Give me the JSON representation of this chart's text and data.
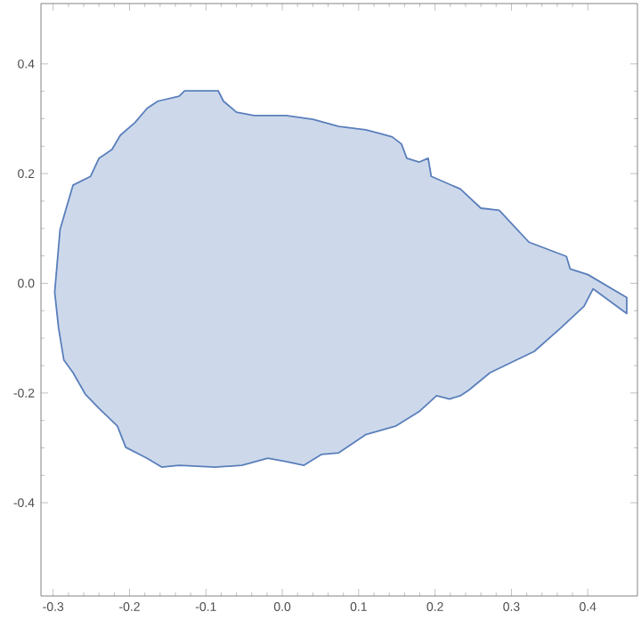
{
  "chart_data": {
    "type": "area",
    "xlim": [
      -0.316,
      0.465
    ],
    "ylim": [
      -0.57,
      0.51
    ],
    "xticks": [
      {
        "value": -0.3,
        "label": "-0.3"
      },
      {
        "value": -0.2,
        "label": "-0.2"
      },
      {
        "value": -0.1,
        "label": "-0.1"
      },
      {
        "value": 0,
        "label": "0.0"
      },
      {
        "value": 0.1,
        "label": "0.1"
      },
      {
        "value": 0.2,
        "label": "0.2"
      },
      {
        "value": 0.3,
        "label": "0.3"
      },
      {
        "value": 0.4,
        "label": "0.4"
      }
    ],
    "yticks": [
      {
        "value": -0.4,
        "label": "-0.4"
      },
      {
        "value": -0.2,
        "label": "-0.2"
      },
      {
        "value": 0,
        "label": "0.0"
      },
      {
        "value": 0.2,
        "label": "0.2"
      },
      {
        "value": 0.4,
        "label": "0.4"
      }
    ],
    "series": [
      {
        "color": "#5a7fbb",
        "x": [
          -0.298,
          -0.291,
          -0.274,
          -0.251,
          -0.24,
          -0.223,
          -0.212,
          -0.193,
          -0.177,
          -0.163,
          -0.135,
          -0.128,
          -0.1,
          -0.084,
          -0.077,
          -0.06,
          -0.037,
          0.005,
          0.04,
          0.074,
          0.109,
          0.128,
          0.144,
          0.156,
          0.163,
          0.179,
          0.191,
          0.195,
          0.233,
          0.26,
          0.284,
          0.323,
          0.372,
          0.377,
          0.4,
          0.451,
          0.451,
          0.407,
          0.395,
          0.365,
          0.33,
          0.272,
          0.244,
          0.233,
          0.219,
          0.202,
          0.179,
          0.149,
          0.109,
          0.074,
          0.051,
          0.028,
          0.005,
          -0.019,
          -0.053,
          -0.088,
          -0.135,
          -0.158,
          -0.177,
          -0.205,
          -0.216,
          -0.24,
          -0.258,
          -0.274,
          -0.286,
          -0.293
        ],
        "values": [
          -0.016,
          0.098,
          0.179,
          0.195,
          0.228,
          0.244,
          0.27,
          0.293,
          0.319,
          0.332,
          0.341,
          0.351,
          0.351,
          0.351,
          0.332,
          0.312,
          0.306,
          0.306,
          0.299,
          0.286,
          0.28,
          0.273,
          0.267,
          0.254,
          0.228,
          0.221,
          0.228,
          0.195,
          0.172,
          0.137,
          0.133,
          0.075,
          0.049,
          0.026,
          0.016,
          -0.026,
          -0.055,
          -0.01,
          -0.042,
          -0.081,
          -0.124,
          -0.163,
          -0.195,
          -0.205,
          -0.211,
          -0.205,
          -0.234,
          -0.26,
          -0.276,
          -0.309,
          -0.312,
          -0.332,
          -0.325,
          -0.319,
          -0.332,
          -0.335,
          -0.332,
          -0.335,
          -0.319,
          -0.299,
          -0.26,
          -0.228,
          -0.202,
          -0.163,
          -0.14,
          -0.081
        ]
      }
    ]
  }
}
